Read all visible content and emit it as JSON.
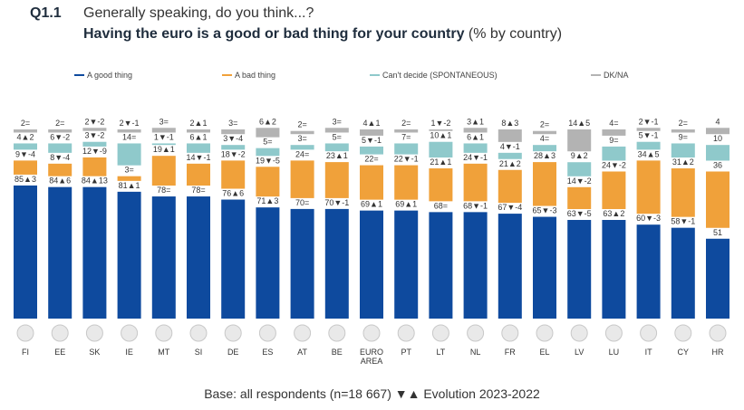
{
  "header": {
    "question_number": "Q1.1",
    "question_text": "Generally speaking, do you think...?",
    "title": "Having the euro is a good or bad thing for your country",
    "title_suffix": "(% by country)"
  },
  "footer": {
    "text": "Base: all respondents (n=18 667) ▼▲ Evolution 2023-2022"
  },
  "colors": {
    "good": "#0e4a9e",
    "bad": "#f0a13a",
    "cant": "#8fc9cb",
    "dk": "#b3b3b3",
    "label": "#333333"
  },
  "chart_data": {
    "type": "bar",
    "stacked": true,
    "title": "Having the euro is a good or bad thing for your country",
    "ylim": [
      0,
      100
    ],
    "legend_position": "top",
    "categories": [
      "FI",
      "EE",
      "SK",
      "IE",
      "MT",
      "SI",
      "DE",
      "ES",
      "AT",
      "BE",
      "EURO AREA",
      "PT",
      "LT",
      "NL",
      "FR",
      "EL",
      "LV",
      "LU",
      "IT",
      "CY",
      "HR"
    ],
    "flags": [
      "flag-finland",
      "flag-estonia",
      "flag-slovakia",
      "flag-ireland",
      "flag-malta",
      "flag-slovenia",
      "flag-germany",
      "flag-spain",
      "flag-austria",
      "flag-belgium",
      "flag-euro-area",
      "flag-portugal",
      "flag-lithuania",
      "flag-netherlands",
      "flag-france",
      "flag-greece",
      "flag-latvia",
      "flag-luxembourg",
      "flag-italy",
      "flag-cyprus",
      "flag-croatia"
    ],
    "series": [
      {
        "name": "A good thing",
        "key": "good",
        "values": [
          85,
          84,
          84,
          81,
          78,
          78,
          76,
          71,
          70,
          70,
          69,
          69,
          68,
          68,
          67,
          65,
          63,
          63,
          60,
          58,
          51
        ],
        "labels": [
          "85▲3",
          "84▲6",
          "84▲13",
          "81▲1",
          "78=",
          "78=",
          "76▲6",
          "71▲3",
          "70=",
          "70▼-1",
          "69▲1",
          "69▲1",
          "68=",
          "68▼-1",
          "67▼-4",
          "65▼-3",
          "63▼-5",
          "63▲2",
          "60▼-3",
          "58▼-1",
          "51"
        ]
      },
      {
        "name": "A bad thing",
        "key": "bad",
        "values": [
          9,
          8,
          12,
          3,
          19,
          14,
          18,
          19,
          24,
          23,
          22,
          22,
          21,
          24,
          21,
          28,
          14,
          24,
          34,
          31,
          36
        ],
        "labels": [
          "9▼-4",
          "8▼-4",
          "12▼-9",
          "3=",
          "19▲1",
          "14▼-1",
          "18▼-2",
          "19▼-5",
          "24=",
          "23▲1",
          "22=",
          "22▼-1",
          "21▲1",
          "24▼-1",
          "21▲2",
          "28▲3",
          "14▼-2",
          "24▼-2",
          "34▲5",
          "31▲2",
          "36"
        ]
      },
      {
        "name": "Can't decide (SPONTANEOUS)",
        "key": "cant",
        "values": [
          4,
          6,
          3,
          14,
          1,
          6,
          3,
          5,
          3,
          5,
          5,
          7,
          10,
          6,
          4,
          4,
          9,
          9,
          5,
          9,
          10
        ],
        "labels": [
          "4▲2",
          "6▼-2",
          "3▼-2",
          "14=",
          "1▼-1",
          "6▲1",
          "3▼-4",
          "5=",
          "3=",
          "5=",
          "5▼-1",
          "7=",
          "10▲1",
          "6▲1",
          "4▼-1",
          "4=",
          "9▲2",
          "9=",
          "5▼-1",
          "9=",
          "10"
        ]
      },
      {
        "name": "DK/NA",
        "key": "dk",
        "values": [
          2,
          2,
          2,
          2,
          3,
          2,
          3,
          6,
          2,
          3,
          4,
          2,
          1,
          3,
          8,
          2,
          14,
          4,
          2,
          2,
          4
        ],
        "labels": [
          "2=",
          "2=",
          "2▼-2",
          "2▼-1",
          "3=",
          "2▲1",
          "3=",
          "6▲2",
          "2=",
          "3=",
          "4▲1",
          "2=",
          "1▼-2",
          "3▲1",
          "8▲3",
          "2=",
          "14▲5",
          "4=",
          "2▼-1",
          "2=",
          "4"
        ]
      }
    ]
  }
}
